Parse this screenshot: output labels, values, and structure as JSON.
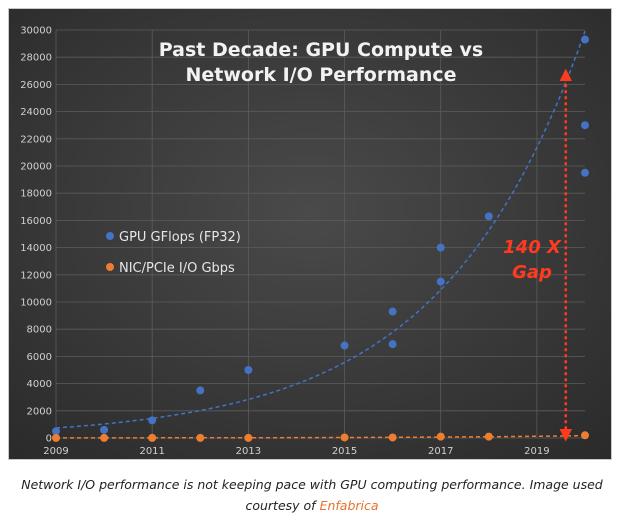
{
  "chart_data": {
    "type": "scatter",
    "title_lines": [
      "Past Decade: GPU Compute vs",
      "Network I/O Performance"
    ],
    "xlim": [
      2009,
      2020
    ],
    "ylim": [
      0,
      30000
    ],
    "x_ticks": [
      2009,
      2011,
      2013,
      2015,
      2017,
      2019
    ],
    "y_ticks": [
      0,
      2000,
      4000,
      6000,
      8000,
      10000,
      12000,
      14000,
      16000,
      18000,
      20000,
      22000,
      24000,
      26000,
      28000,
      30000
    ],
    "grid": true,
    "legend_position": "left",
    "series": [
      {
        "name": "GPU GFlops (FP32)",
        "color": "#4472c4",
        "points": [
          [
            2009.0,
            500
          ],
          [
            2010.0,
            600
          ],
          [
            2011.0,
            1300
          ],
          [
            2012.0,
            3500
          ],
          [
            2013.0,
            5000
          ],
          [
            2015.0,
            6800
          ],
          [
            2016.0,
            6900
          ],
          [
            2016.0,
            9300
          ],
          [
            2017.0,
            11500
          ],
          [
            2017.0,
            14000
          ],
          [
            2018.0,
            16300
          ],
          [
            2020.0,
            19500
          ],
          [
            2020.0,
            23000
          ],
          [
            2020.0,
            29300
          ]
        ],
        "trendline": "exponential"
      },
      {
        "name": "NIC/PCIe I/O Gbps",
        "color": "#ed7d31",
        "points": [
          [
            2009.0,
            10
          ],
          [
            2010.0,
            10
          ],
          [
            2011.0,
            10
          ],
          [
            2012.0,
            10
          ],
          [
            2013.0,
            10
          ],
          [
            2015.0,
            40
          ],
          [
            2016.0,
            40
          ],
          [
            2017.0,
            100
          ],
          [
            2018.0,
            100
          ],
          [
            2020.0,
            200
          ]
        ],
        "trendline": "exponential"
      }
    ],
    "annotation": {
      "lines": [
        "140 X",
        "Gap"
      ],
      "arrow_x": 2019.6,
      "arrow_from": 200,
      "arrow_to": 26700,
      "color": "#ff3a1f"
    }
  },
  "caption": {
    "text": "Network I/O performance is not keeping pace with GPU computing performance. Image used courtesy of",
    "link": "Enfabrica"
  }
}
